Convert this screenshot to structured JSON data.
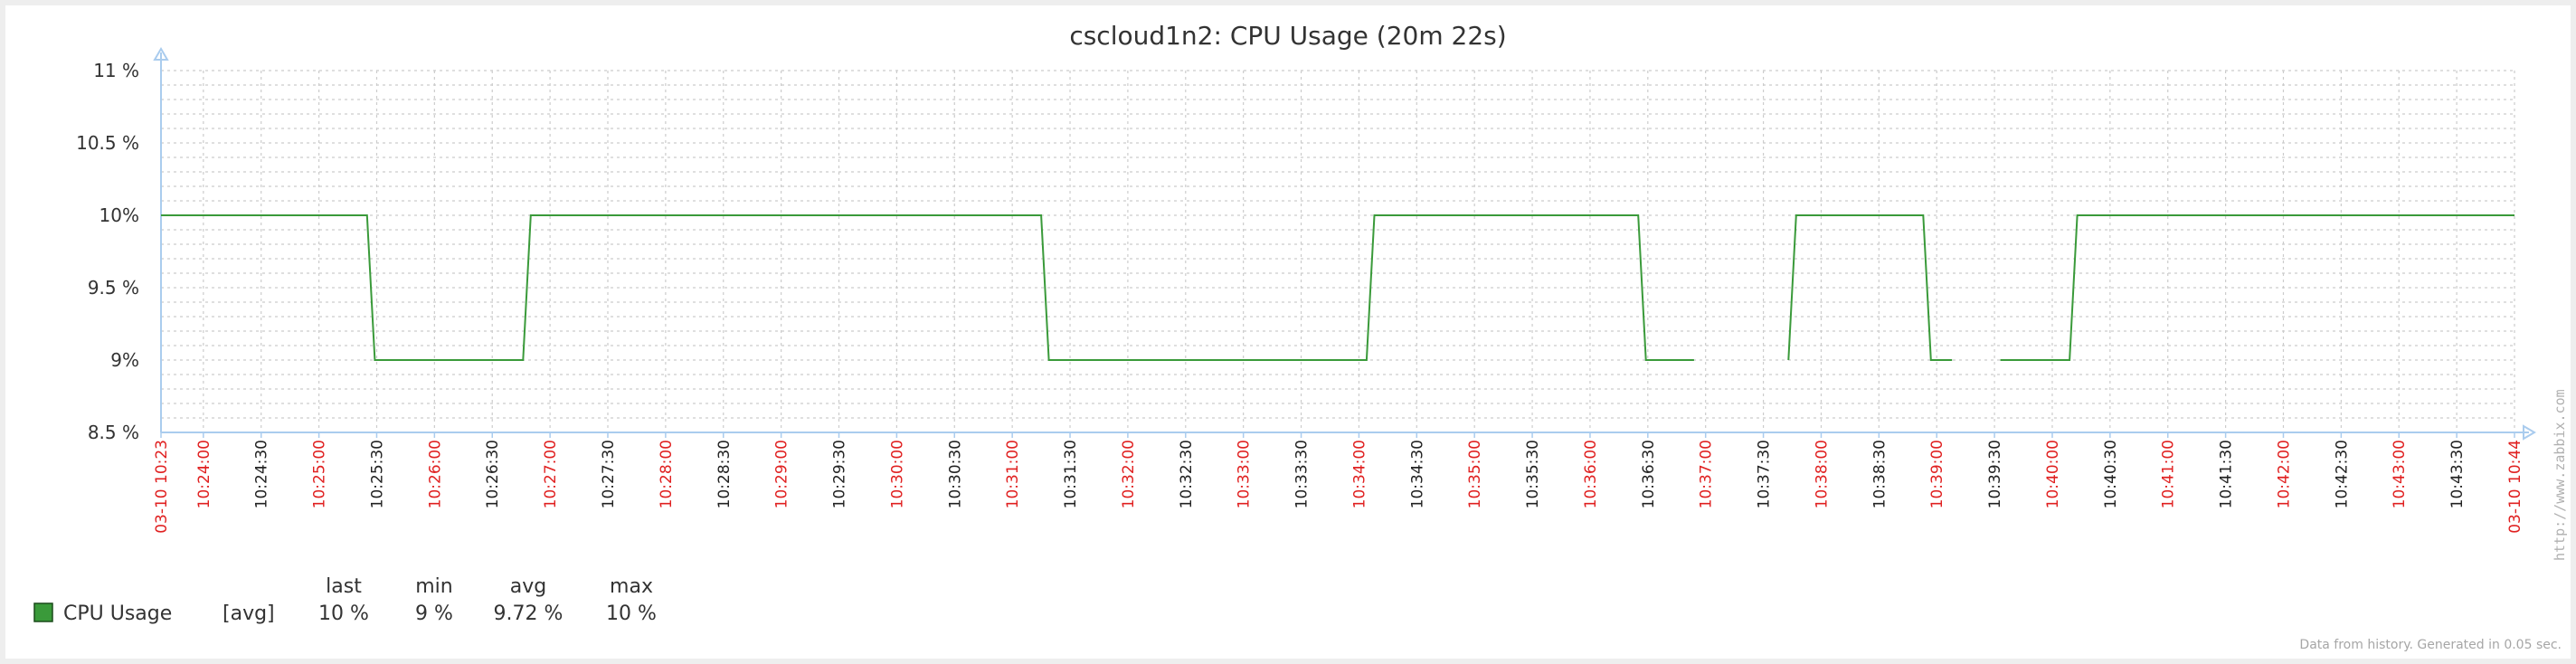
{
  "chart_data": {
    "type": "line",
    "title": "cscloud1n2: CPU Usage (20m 22s)",
    "ylim": [
      8.5,
      11
    ],
    "yticks": [
      {
        "value": 11,
        "label": "11 %"
      },
      {
        "value": 10.5,
        "label": "10.5 %"
      },
      {
        "value": 10,
        "label": "10%"
      },
      {
        "value": 9.5,
        "label": "9.5 %"
      },
      {
        "value": 9,
        "label": "9%"
      },
      {
        "value": 8.5,
        "label": "8.5 %"
      }
    ],
    "xlim": [
      "10:23:38",
      "10:44:00"
    ],
    "xticks": [
      {
        "time": "10:23:38",
        "label": "03-10 10:23",
        "red": true
      },
      {
        "time": "10:24:00",
        "label": "10:24:00",
        "red": true
      },
      {
        "time": "10:24:30",
        "label": "10:24:30",
        "red": false
      },
      {
        "time": "10:25:00",
        "label": "10:25:00",
        "red": true
      },
      {
        "time": "10:25:30",
        "label": "10:25:30",
        "red": false
      },
      {
        "time": "10:26:00",
        "label": "10:26:00",
        "red": true
      },
      {
        "time": "10:26:30",
        "label": "10:26:30",
        "red": false
      },
      {
        "time": "10:27:00",
        "label": "10:27:00",
        "red": true
      },
      {
        "time": "10:27:30",
        "label": "10:27:30",
        "red": false
      },
      {
        "time": "10:28:00",
        "label": "10:28:00",
        "red": true
      },
      {
        "time": "10:28:30",
        "label": "10:28:30",
        "red": false
      },
      {
        "time": "10:29:00",
        "label": "10:29:00",
        "red": true
      },
      {
        "time": "10:29:30",
        "label": "10:29:30",
        "red": false
      },
      {
        "time": "10:30:00",
        "label": "10:30:00",
        "red": true
      },
      {
        "time": "10:30:30",
        "label": "10:30:30",
        "red": false
      },
      {
        "time": "10:31:00",
        "label": "10:31:00",
        "red": true
      },
      {
        "time": "10:31:30",
        "label": "10:31:30",
        "red": false
      },
      {
        "time": "10:32:00",
        "label": "10:32:00",
        "red": true
      },
      {
        "time": "10:32:30",
        "label": "10:32:30",
        "red": false
      },
      {
        "time": "10:33:00",
        "label": "10:33:00",
        "red": true
      },
      {
        "time": "10:33:30",
        "label": "10:33:30",
        "red": false
      },
      {
        "time": "10:34:00",
        "label": "10:34:00",
        "red": true
      },
      {
        "time": "10:34:30",
        "label": "10:34:30",
        "red": false
      },
      {
        "time": "10:35:00",
        "label": "10:35:00",
        "red": true
      },
      {
        "time": "10:35:30",
        "label": "10:35:30",
        "red": false
      },
      {
        "time": "10:36:00",
        "label": "10:36:00",
        "red": true
      },
      {
        "time": "10:36:30",
        "label": "10:36:30",
        "red": false
      },
      {
        "time": "10:37:00",
        "label": "10:37:00",
        "red": true
      },
      {
        "time": "10:37:30",
        "label": "10:37:30",
        "red": false
      },
      {
        "time": "10:38:00",
        "label": "10:38:00",
        "red": true
      },
      {
        "time": "10:38:30",
        "label": "10:38:30",
        "red": false
      },
      {
        "time": "10:39:00",
        "label": "10:39:00",
        "red": true
      },
      {
        "time": "10:39:30",
        "label": "10:39:30",
        "red": false
      },
      {
        "time": "10:40:00",
        "label": "10:40:00",
        "red": true
      },
      {
        "time": "10:40:30",
        "label": "10:40:30",
        "red": false
      },
      {
        "time": "10:41:00",
        "label": "10:41:00",
        "red": true
      },
      {
        "time": "10:41:30",
        "label": "10:41:30",
        "red": false
      },
      {
        "time": "10:42:00",
        "label": "10:42:00",
        "red": true
      },
      {
        "time": "10:42:30",
        "label": "10:42:30",
        "red": false
      },
      {
        "time": "10:43:00",
        "label": "10:43:00",
        "red": true
      },
      {
        "time": "10:43:30",
        "label": "10:43:30",
        "red": false
      },
      {
        "time": "10:44:00",
        "label": "03-10 10:44",
        "red": true
      }
    ],
    "series": [
      {
        "name": "CPU Usage",
        "color": "#3a9a3a",
        "segments": [
          [
            [
              "10:23:38",
              10
            ],
            [
              "10:25:25",
              10
            ],
            [
              "10:25:29",
              9
            ],
            [
              "10:26:46",
              9
            ],
            [
              "10:26:50",
              10
            ],
            [
              "10:31:15",
              10
            ],
            [
              "10:31:19",
              9
            ],
            [
              "10:34:04",
              9
            ],
            [
              "10:34:08",
              10
            ],
            [
              "10:36:25",
              10
            ],
            [
              "10:36:29",
              9
            ],
            [
              "10:36:54",
              9
            ]
          ],
          [
            [
              "10:37:43",
              9
            ],
            [
              "10:37:47",
              10
            ],
            [
              "10:38:53",
              10
            ],
            [
              "10:38:57",
              9
            ],
            [
              "10:39:08",
              9
            ]
          ],
          [
            [
              "10:39:33",
              9
            ],
            [
              "10:40:09",
              9
            ],
            [
              "10:40:13",
              10
            ],
            [
              "10:44:00",
              10
            ]
          ]
        ]
      }
    ],
    "legend": {
      "headers": [
        "last",
        "min",
        "avg",
        "max"
      ],
      "rows": [
        {
          "name": "CPU Usage",
          "func": "[avg]",
          "last": "10 %",
          "min": "9 %",
          "avg": "9.72 %",
          "max": "10 %",
          "color": "#3a9a3a"
        }
      ]
    },
    "grid": true,
    "footer": "Data from history. Generated in 0.05 sec.",
    "side_label": "http://www.zabbix.com",
    "colors": {
      "axis": "#aaccee",
      "grid": "#cccccc",
      "red_tick": "#e02020",
      "black_tick": "#222222"
    }
  }
}
